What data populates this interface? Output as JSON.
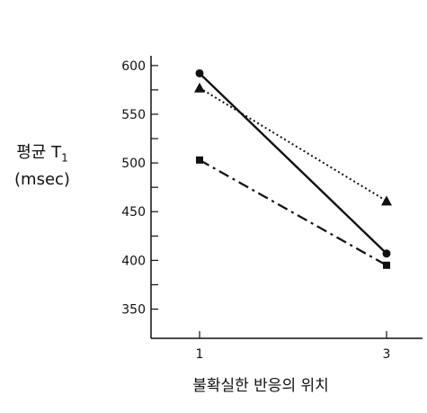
{
  "chart_data": {
    "type": "line",
    "x": [
      1,
      3
    ],
    "x_ticks": [
      "1",
      "3"
    ],
    "xlabel": "불확실한 반응의 위치",
    "ylabel_main": "평균 T",
    "ylabel_sub": "1",
    "ylabel_unit": "(msec)",
    "ylim": [
      320,
      610
    ],
    "y_ticks": [
      350,
      400,
      450,
      500,
      550,
      600
    ],
    "grid": false,
    "series": [
      {
        "style": "solid",
        "marker": "circle",
        "values": [
          592,
          407
        ]
      },
      {
        "style": "dotted",
        "marker": "triangle",
        "values": [
          577,
          461
        ]
      },
      {
        "style": "dash-dot",
        "marker": "square",
        "values": [
          503,
          395
        ]
      }
    ],
    "colors": {
      "ink": "#111111"
    }
  }
}
